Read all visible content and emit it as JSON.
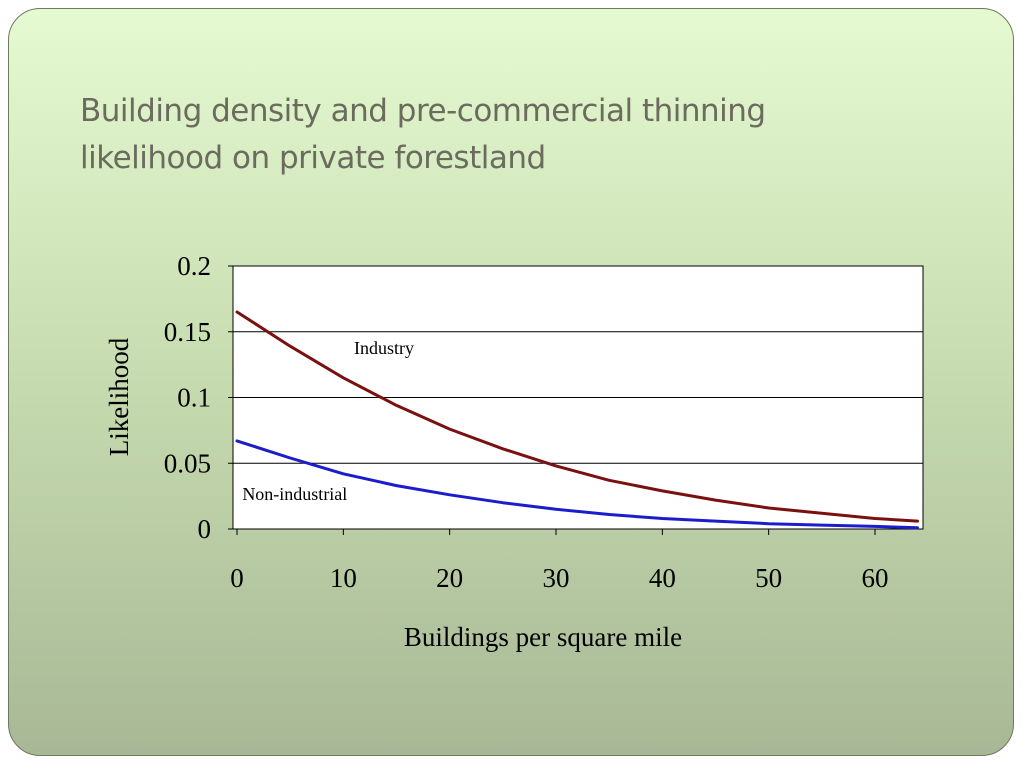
{
  "slide": {
    "title_lines": [
      "Building density and pre-commercial thinning",
      "likelihood on private forestland"
    ]
  },
  "chart_data": {
    "type": "line",
    "xlabel": "Buildings per square mile",
    "ylabel": "Likelihood",
    "xlim": [
      0,
      65
    ],
    "ylim": [
      0,
      0.2
    ],
    "x_ticks": [
      "0",
      "10",
      "20",
      "30",
      "40",
      "50",
      "60"
    ],
    "y_ticks": [
      "0",
      "0.05",
      "0.1",
      "0.15",
      "0.2"
    ],
    "grid": "horizontal",
    "x": [
      0,
      5,
      10,
      15,
      20,
      25,
      30,
      35,
      40,
      45,
      50,
      55,
      60,
      64
    ],
    "series": [
      {
        "name": "Industry",
        "color": "#7a1010",
        "values": [
          0.165,
          0.139,
          0.115,
          0.094,
          0.076,
          0.061,
          0.048,
          0.037,
          0.029,
          0.022,
          0.016,
          0.012,
          0.008,
          0.006
        ]
      },
      {
        "name": "Non-industrial",
        "color": "#1c1ccc",
        "values": [
          0.067,
          0.054,
          0.042,
          0.033,
          0.026,
          0.02,
          0.015,
          0.011,
          0.008,
          0.006,
          0.004,
          0.003,
          0.002,
          0.001
        ]
      }
    ],
    "annotations": [
      {
        "text": "Industry",
        "x": 11,
        "y": 0.133
      },
      {
        "text": "Non-industrial",
        "x": 0.5,
        "y": 0.022
      }
    ]
  }
}
